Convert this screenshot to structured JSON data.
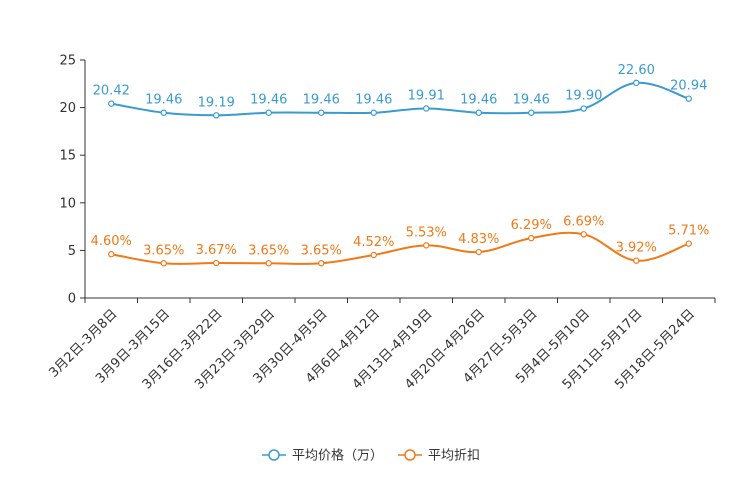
{
  "chart_data": {
    "type": "line",
    "title": "",
    "xlabel": "",
    "ylabel": "",
    "ylim": [
      0,
      25
    ],
    "yticks": [
      0,
      5,
      10,
      15,
      20,
      25
    ],
    "grid": false,
    "legend_position": "bottom-center",
    "categories": [
      "3月2日-3月8日",
      "3月9日-3月15日",
      "3月16日-3月22日",
      "3月23日-3月29日",
      "3月30日-4月5日",
      "4月6日-4月12日",
      "4月13日-4月19日",
      "4月20日-4月26日",
      "4月27日-5月3日",
      "5月4日-5月10日",
      "5月11日-5月17日",
      "5月18日-5月24日"
    ],
    "series": [
      {
        "name": "平均价格（万）",
        "color": "#3a9bd0",
        "values": [
          20.42,
          19.46,
          19.19,
          19.46,
          19.46,
          19.46,
          19.91,
          19.46,
          19.46,
          19.9,
          22.6,
          20.94
        ],
        "labels": [
          "20.42",
          "19.46",
          "19.19",
          "19.46",
          "19.46",
          "19.46",
          "19.91",
          "19.46",
          "19.46",
          "19.90",
          "22.60",
          "20.94"
        ]
      },
      {
        "name": "平均折扣",
        "color": "#f07a18",
        "values": [
          4.6,
          3.65,
          3.67,
          3.65,
          3.65,
          4.52,
          5.53,
          4.83,
          6.29,
          6.69,
          3.92,
          5.71
        ],
        "labels": [
          "4.60%",
          "3.65%",
          "3.67%",
          "3.65%",
          "3.65%",
          "4.52%",
          "5.53%",
          "4.83%",
          "6.29%",
          "6.69%",
          "3.92%",
          "5.71%"
        ]
      }
    ]
  }
}
